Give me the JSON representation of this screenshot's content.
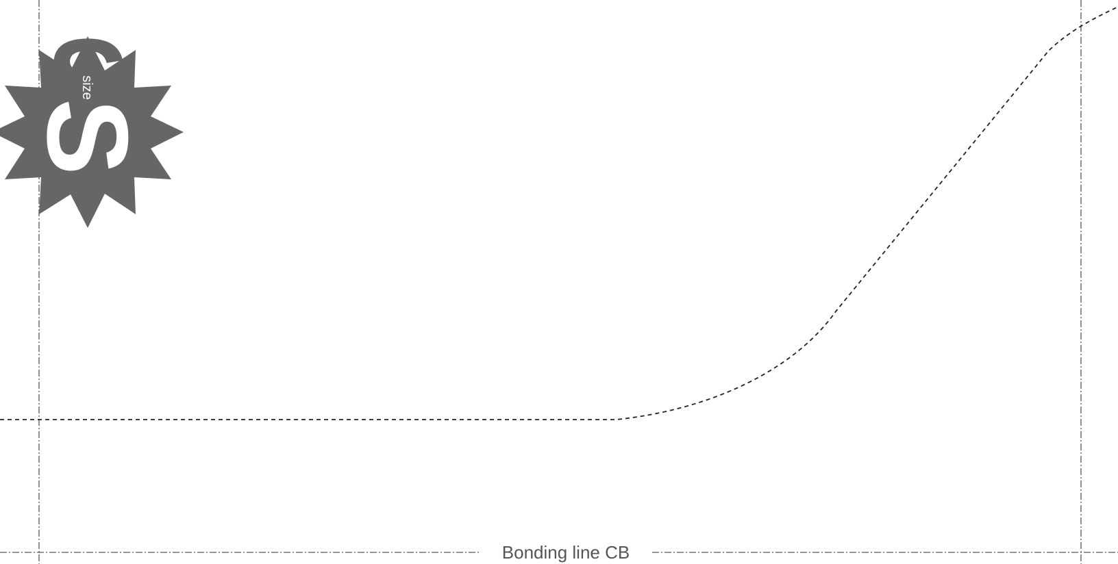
{
  "bonding_line": {
    "label": "Bonding line CB"
  },
  "size_badge": {
    "letter": "S",
    "word": "size",
    "color": "#666666"
  },
  "colors": {
    "guide": "#555555",
    "cut_line": "#222222",
    "background": "#ffffff"
  }
}
